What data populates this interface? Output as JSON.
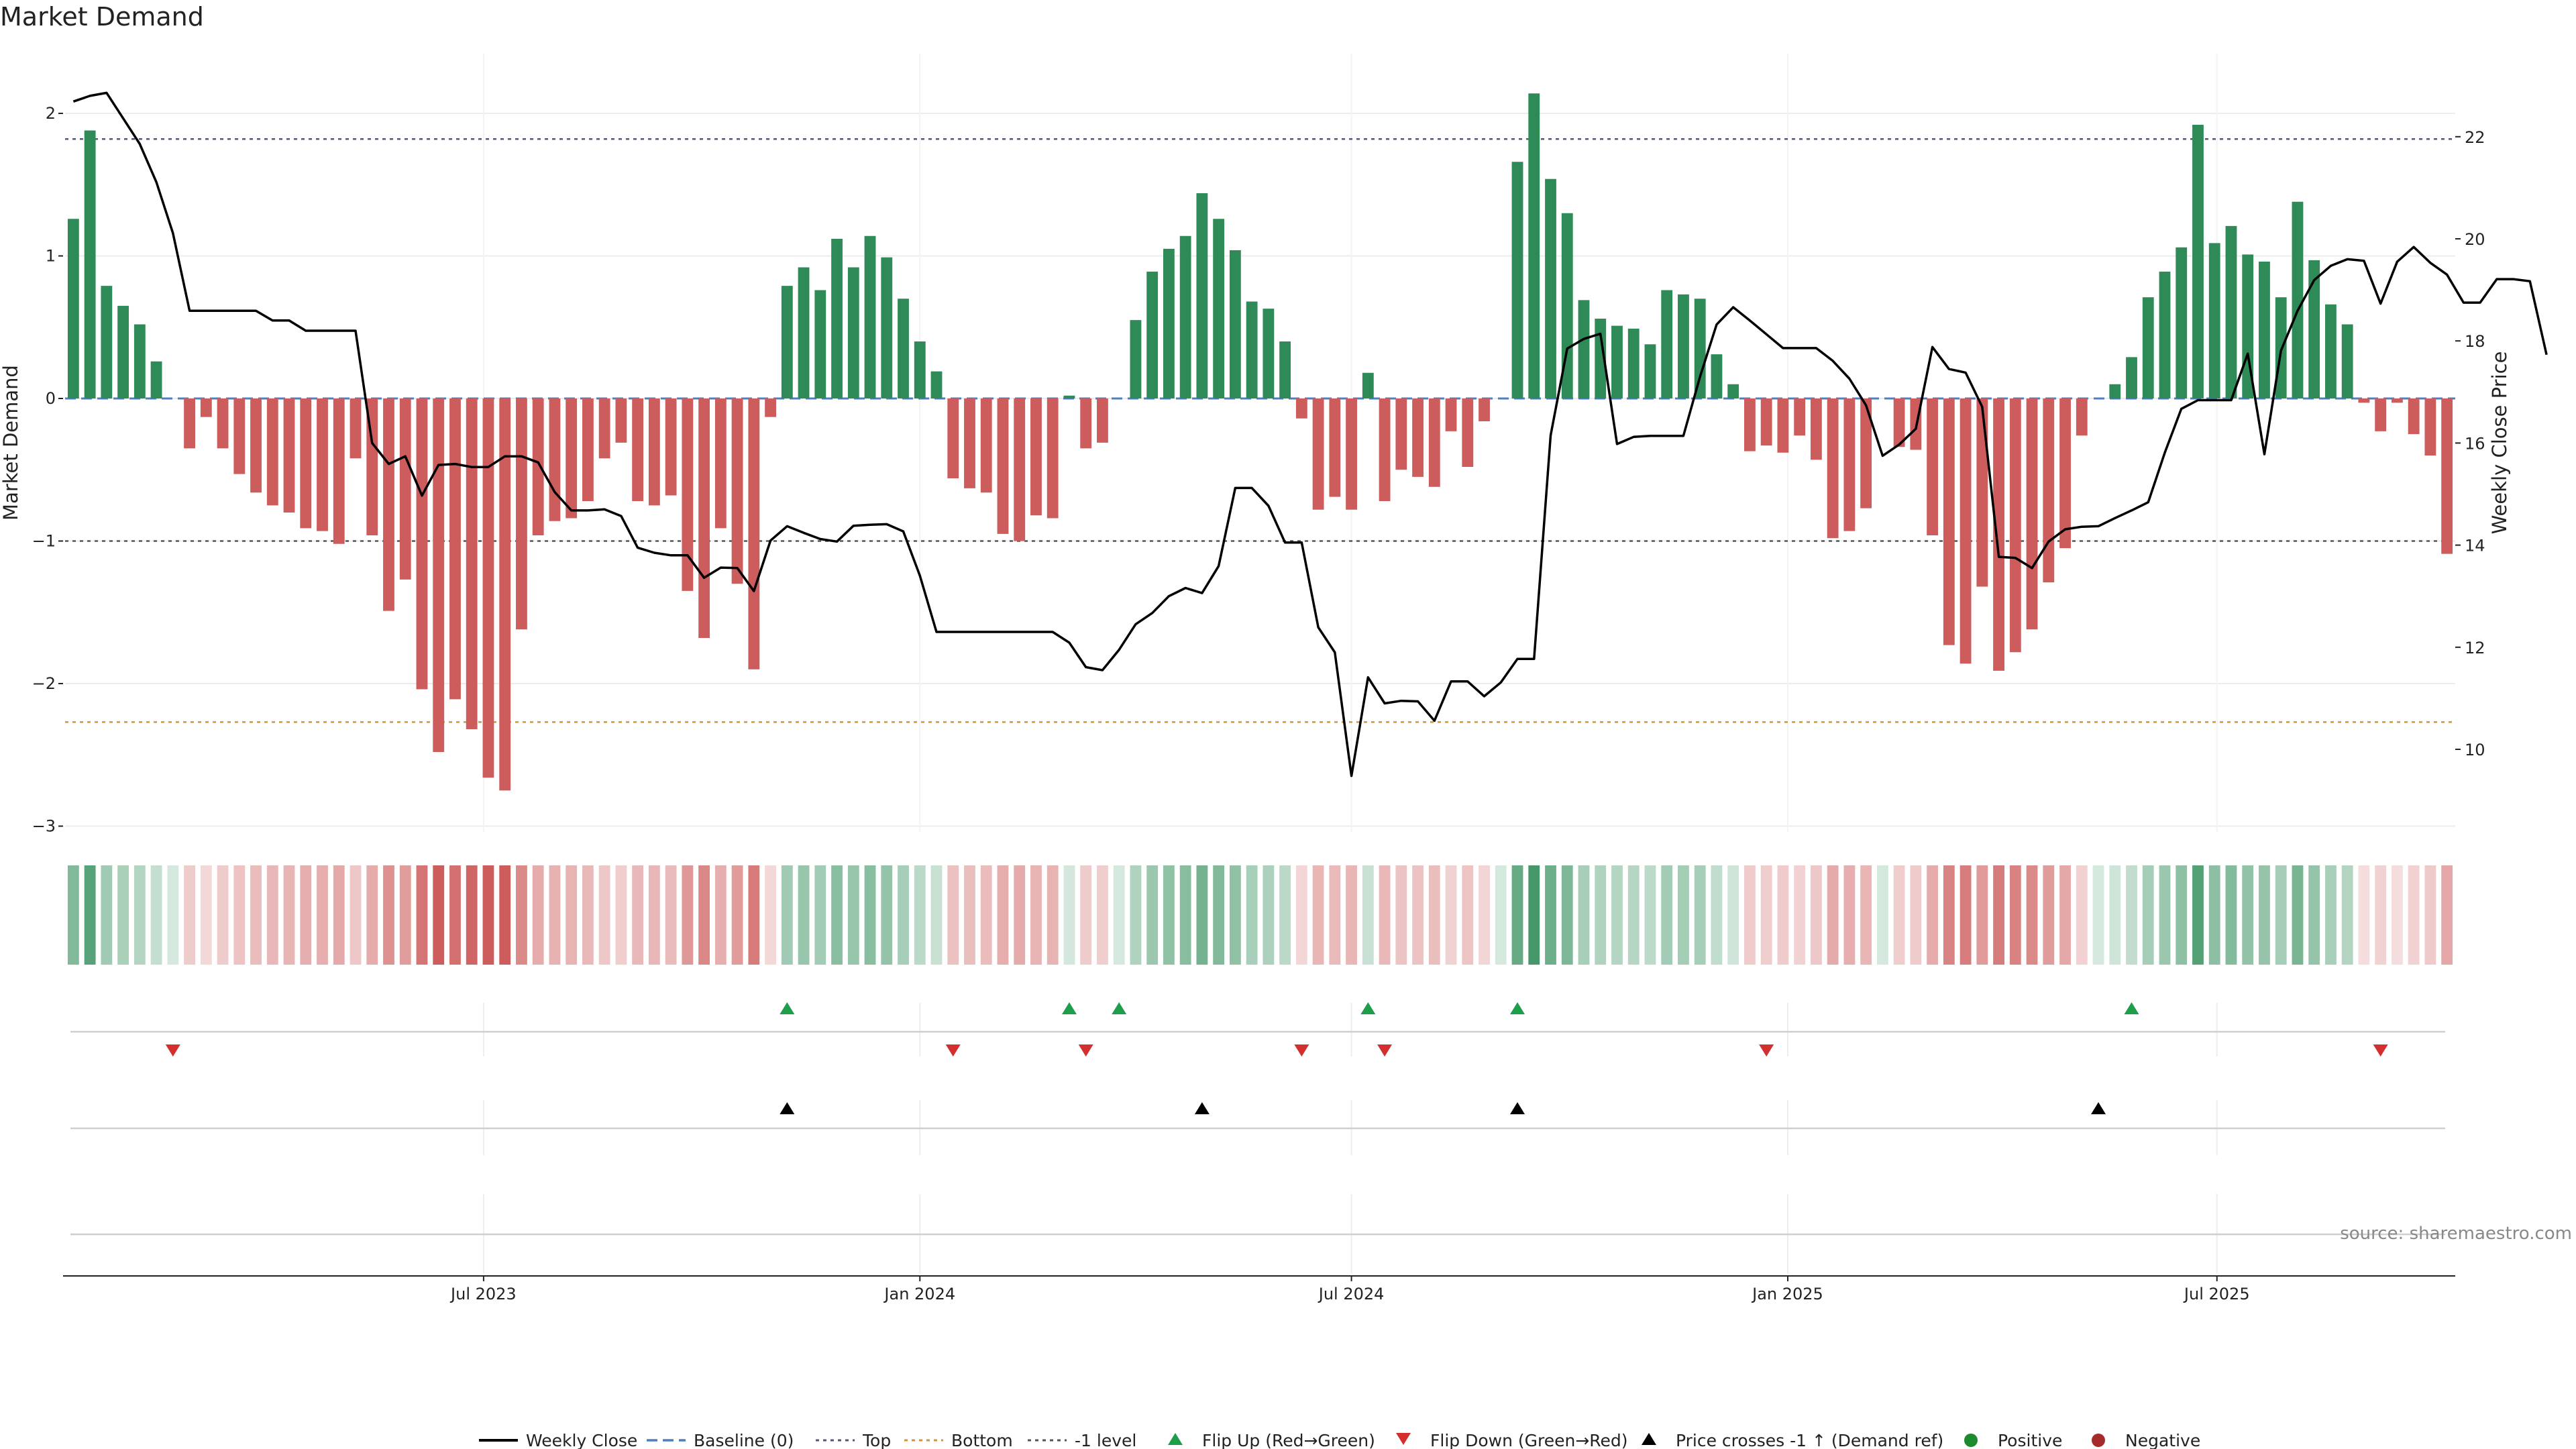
{
  "title": "Market Demand",
  "source": "source: sharemaestro.com",
  "colors": {
    "positive": "#2e8b57",
    "negative": "#cd5c5c",
    "close": "#000000",
    "baseline": "#4f7fbf",
    "top": "#555577",
    "bottom": "#d4943a",
    "minus_one": "#555555",
    "flip_up": "#1e9e4a",
    "flip_down": "#d32f2f",
    "cross": "#000000",
    "legend_positive": "#1e8a2e",
    "legend_negative": "#a52a2a"
  },
  "legend": [
    {
      "label": "Weekly Close",
      "kind": "line",
      "color": "#000000"
    },
    {
      "label": "Baseline (0)",
      "kind": "dash",
      "color": "#4f7fbf"
    },
    {
      "label": "Top",
      "kind": "dot",
      "color": "#555577"
    },
    {
      "label": "Bottom",
      "kind": "dot",
      "color": "#d4943a"
    },
    {
      "label": "-1 level",
      "kind": "dot",
      "color": "#555555"
    },
    {
      "label": "Flip Up (Red→Green)",
      "kind": "up",
      "color": "#1e9e4a"
    },
    {
      "label": "Flip Down (Green→Red)",
      "kind": "down",
      "color": "#d32f2f"
    },
    {
      "label": "Price crosses -1 ↑ (Demand ref)",
      "kind": "up",
      "color": "#000000"
    },
    {
      "label": "Positive",
      "kind": "dot-marker",
      "color": "#1e8a2e"
    },
    {
      "label": "Negative",
      "kind": "dot-marker",
      "color": "#a52a2a"
    }
  ],
  "chart_data": {
    "type": "bar",
    "title": "Market Demand",
    "frequency": "weekly",
    "start_week": "2023-01-09",
    "ylabel_left": "Market Demand",
    "ylabel_right": "Weekly Close Price",
    "ylim_left": [
      -3.0,
      2.2
    ],
    "yticks_left": [
      2,
      1,
      0,
      -1,
      -2,
      -3
    ],
    "ytick_labels_left": [
      "2",
      "1",
      "0",
      "−1",
      "−2",
      "−3"
    ],
    "ylim_right": [
      8.6,
      23.3
    ],
    "yticks_right": [
      22,
      20,
      18,
      16,
      14,
      12,
      10
    ],
    "xtick_labels": [
      "Jul 2023",
      "Jan 2024",
      "Jul 2024",
      "Jan 2025",
      "Jul 2025"
    ],
    "xtick_dates": [
      "2023-07-01",
      "2024-01-01",
      "2024-07-01",
      "2025-01-01",
      "2025-07-01"
    ],
    "reference_lines": {
      "top": 1.82,
      "bottom": -2.27,
      "baseline": 0,
      "minus_one": -1
    },
    "demand": [
      1.26,
      1.88,
      0.79,
      0.65,
      0.52,
      0.26,
      0.0,
      -0.35,
      -0.13,
      -0.35,
      -0.53,
      -0.66,
      -0.75,
      -0.8,
      -0.91,
      -0.93,
      -1.02,
      -0.42,
      -0.96,
      -1.49,
      -1.27,
      -2.04,
      -2.48,
      -2.11,
      -2.32,
      -2.66,
      -2.75,
      -1.62,
      -0.96,
      -0.86,
      -0.84,
      -0.72,
      -0.42,
      -0.31,
      -0.72,
      -0.75,
      -0.68,
      -1.35,
      -1.68,
      -0.91,
      -1.3,
      -1.9,
      -0.13,
      0.79,
      0.92,
      0.76,
      1.12,
      0.92,
      1.14,
      0.99,
      0.7,
      0.4,
      0.19,
      -0.56,
      -0.63,
      -0.66,
      -0.95,
      -1.0,
      -0.82,
      -0.84,
      0.02,
      -0.35,
      -0.31,
      0.0,
      0.55,
      0.89,
      1.05,
      1.14,
      1.44,
      1.26,
      1.04,
      0.68,
      0.63,
      0.4,
      -0.14,
      -0.78,
      -0.69,
      -0.78,
      0.18,
      -0.72,
      -0.5,
      -0.55,
      -0.62,
      -0.23,
      -0.48,
      -0.16,
      0.0,
      1.66,
      2.14,
      1.54,
      1.3,
      0.69,
      0.56,
      0.51,
      0.49,
      0.38,
      0.76,
      0.73,
      0.7,
      0.31,
      0.1,
      -0.37,
      -0.33,
      -0.38,
      -0.26,
      -0.43,
      -0.98,
      -0.93,
      -0.77,
      0.0,
      -0.34,
      -0.36,
      -0.96,
      -1.73,
      -1.86,
      -1.32,
      -1.91,
      -1.78,
      -1.62,
      -1.29,
      -1.05,
      -0.26,
      0.0,
      0.1,
      0.29,
      0.71,
      0.89,
      1.06,
      1.92,
      1.09,
      1.21,
      1.01,
      0.96,
      0.71,
      1.38,
      0.97,
      0.66,
      0.52,
      -0.03,
      -0.23,
      -0.03,
      -0.25,
      -0.4,
      -1.09
    ],
    "close": [
      22.69,
      22.8,
      22.86,
      22.36,
      21.86,
      21.11,
      20.11,
      18.59,
      18.59,
      18.59,
      18.59,
      18.59,
      18.4,
      18.4,
      18.2,
      18.2,
      18.2,
      18.2,
      16.0,
      15.59,
      15.74,
      14.97,
      15.57,
      15.59,
      15.53,
      15.53,
      15.74,
      15.74,
      15.62,
      15.04,
      14.68,
      14.68,
      14.7,
      14.57,
      13.95,
      13.85,
      13.8,
      13.8,
      13.36,
      13.56,
      13.55,
      13.1,
      14.09,
      14.37,
      14.24,
      14.12,
      14.07,
      14.38,
      14.4,
      14.41,
      14.27,
      13.4,
      12.3,
      12.3,
      12.3,
      12.3,
      12.3,
      12.3,
      12.3,
      12.3,
      12.09,
      11.61,
      11.55,
      11.95,
      12.45,
      12.67,
      13.0,
      13.16,
      13.06,
      13.59,
      15.12,
      15.12,
      14.77,
      14.05,
      14.05,
      12.39,
      11.9,
      9.48,
      11.41,
      10.9,
      10.95,
      10.94,
      10.56,
      11.33,
      11.33,
      11.04,
      11.31,
      11.77,
      11.77,
      16.15,
      17.85,
      18.04,
      18.14,
      15.98,
      16.12,
      16.14,
      16.14,
      16.14,
      17.3,
      18.32,
      18.66,
      18.4,
      18.13,
      17.86,
      17.86,
      17.86,
      17.61,
      17.26,
      16.74,
      15.75,
      15.97,
      16.28,
      17.88,
      17.45,
      17.38,
      16.71,
      13.77,
      13.75,
      13.55,
      14.07,
      14.31,
      14.36,
      14.37,
      14.53,
      14.68,
      14.84,
      15.81,
      16.67,
      16.84,
      16.84,
      16.84,
      17.75,
      15.78,
      17.81,
      18.59,
      19.19,
      19.47,
      19.6,
      19.57,
      18.73,
      19.55,
      19.84,
      19.53,
      19.3,
      18.75,
      18.75,
      19.21,
      19.21,
      19.17,
      17.73
    ],
    "flip_up_weeks": [
      43,
      60,
      63,
      78,
      87,
      124
    ],
    "flip_down_weeks": [
      6,
      53,
      61,
      74,
      79,
      102,
      139
    ],
    "price_cross_weeks": [
      43,
      68,
      87,
      122
    ],
    "category_series": [
      "Positive",
      "Negative"
    ]
  }
}
